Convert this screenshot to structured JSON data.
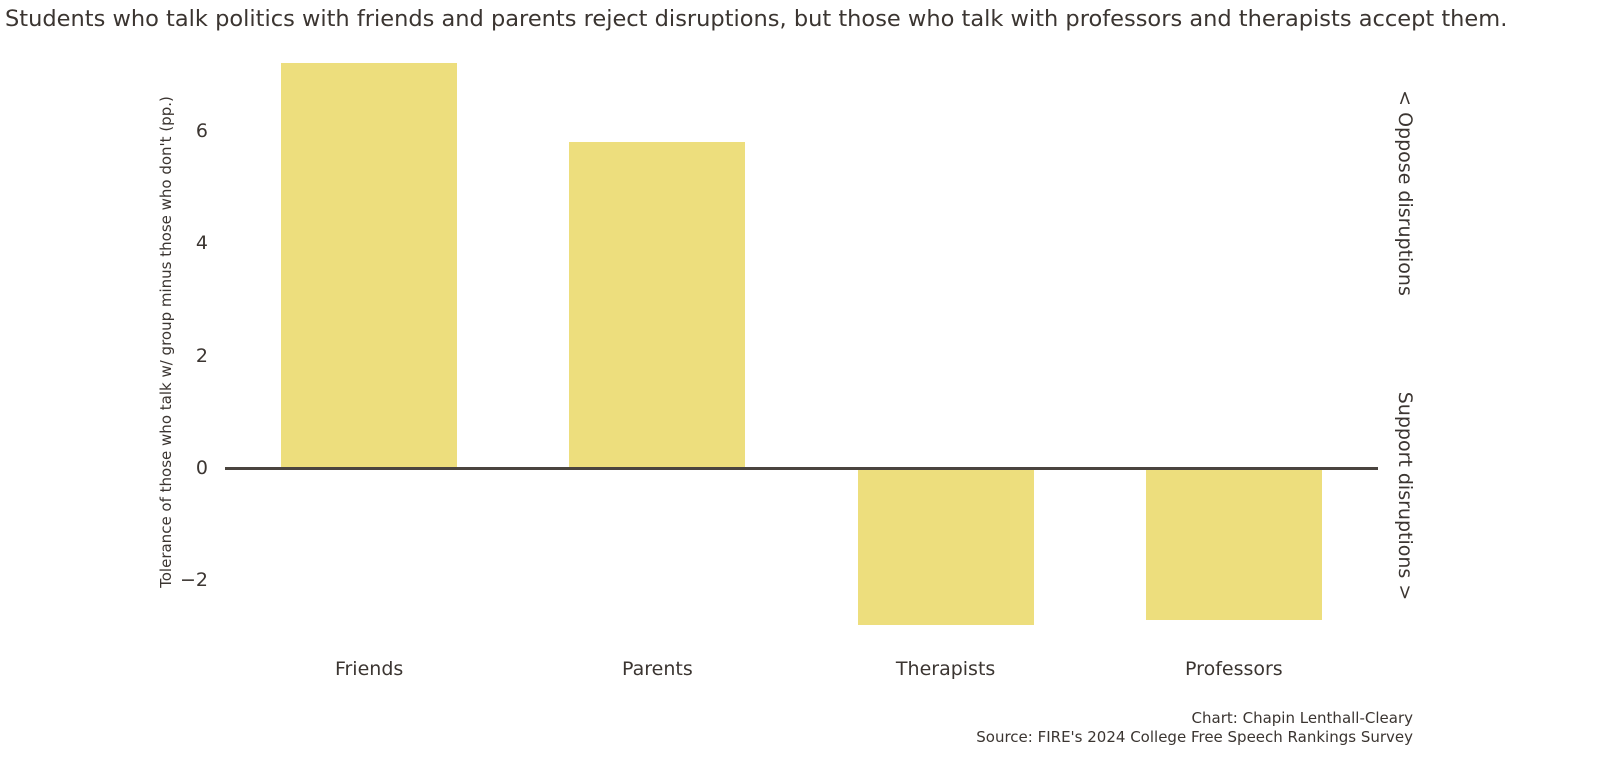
{
  "chart": {
    "title": "Students who talk politics with friends and parents reject disruptions, but those who talk with professors and therapists accept them.",
    "ylabel": "Tolerance of those who talk w/ group minus those who don't (pp.)",
    "right_label_top": "< Oppose disruptions",
    "right_label_bottom": "Support disruptions >"
  },
  "credits": {
    "chart_line": "Chart: Chapin Lenthall-Cleary",
    "source_line": "Source: FIRE's 2024 College Free Speech Rankings Survey"
  },
  "chart_data": {
    "type": "bar",
    "title": "Students who talk politics with friends and parents reject disruptions, but those who talk with professors and therapists accept them.",
    "categories": [
      "Friends",
      "Parents",
      "Therapists",
      "Professors"
    ],
    "values": [
      7.2,
      5.8,
      -2.8,
      -2.7
    ],
    "xlabel": "",
    "ylabel": "Tolerance of those who talk w/ group minus those who don't (pp.)",
    "yticks": [
      6,
      4,
      2,
      0,
      -2
    ],
    "ytick_labels": [
      "6",
      "4",
      "2",
      "0",
      "−2"
    ],
    "ylim": [
      -3.3,
      7.6
    ],
    "grid": false,
    "legend_position": "none",
    "annotations": [
      "< Oppose disruptions",
      "Support disruptions >"
    ],
    "bar_color": "#EDDE7D",
    "axis_line_color": "#4a443f",
    "text_color": "#3b3531"
  }
}
